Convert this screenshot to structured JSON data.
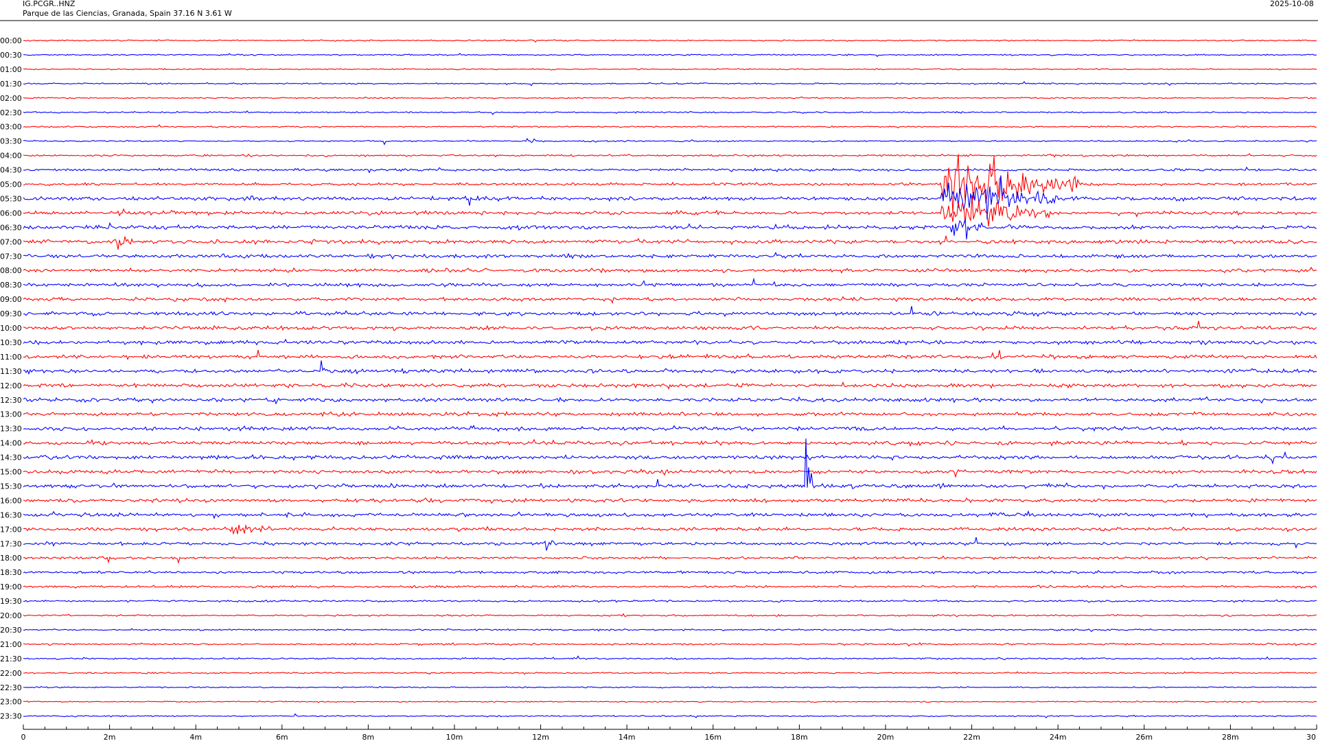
{
  "header": {
    "station": "IG.PCGR..HNZ",
    "location": "Parque de las Ciencias, Granada, Spain  37.16 N 3.61 W",
    "date": "2025-10-08"
  },
  "colors": {
    "even_row": "#ff0000",
    "odd_row": "#0000ff",
    "axis": "#000000",
    "background": "#ffffff"
  },
  "chart_data": {
    "type": "line",
    "title": "",
    "description_type": "helicorder",
    "rows": [
      "00:00",
      "00:30",
      "01:00",
      "01:30",
      "02:00",
      "02:30",
      "03:00",
      "03:30",
      "04:00",
      "04:30",
      "05:00",
      "05:30",
      "06:00",
      "06:30",
      "07:00",
      "07:30",
      "08:00",
      "08:30",
      "09:00",
      "09:30",
      "10:00",
      "10:30",
      "11:00",
      "11:30",
      "12:00",
      "12:30",
      "13:00",
      "13:30",
      "14:00",
      "14:30",
      "15:00",
      "15:30",
      "16:00",
      "16:30",
      "17:00",
      "17:30",
      "18:00",
      "18:30",
      "19:00",
      "19:30",
      "20:00",
      "20:30",
      "21:00",
      "21:30",
      "22:00",
      "22:30",
      "23:00",
      "23:30"
    ],
    "noise_levels": [
      0.9,
      0.9,
      0.8,
      1.0,
      0.9,
      1.0,
      0.9,
      1.0,
      1.3,
      1.6,
      1.8,
      2.6,
      2.4,
      2.6,
      2.6,
      2.4,
      2.3,
      2.3,
      2.3,
      2.4,
      2.4,
      2.6,
      2.5,
      2.6,
      2.6,
      2.5,
      2.5,
      2.5,
      2.5,
      2.6,
      2.5,
      2.6,
      2.4,
      2.5,
      2.3,
      2.0,
      1.7,
      1.7,
      1.5,
      1.3,
      1.2,
      1.1,
      1.2,
      1.1,
      1.0,
      0.9,
      0.8,
      0.9
    ],
    "x_ticks": [
      "0",
      "2m",
      "4m",
      "6m",
      "8m",
      "10m",
      "12m",
      "14m",
      "16m",
      "18m",
      "20m",
      "22m",
      "24m",
      "26m",
      "28m",
      "30"
    ],
    "xlim": [
      0,
      30
    ],
    "x_unit": "minutes",
    "events": [
      {
        "row": 10,
        "start": 21.3,
        "end": 24.5,
        "amp": 55
      },
      {
        "row": 11,
        "start": 21.3,
        "end": 24.0,
        "amp": 45
      },
      {
        "row": 12,
        "start": 21.3,
        "end": 23.8,
        "amp": 40
      },
      {
        "row": 13,
        "start": 21.5,
        "end": 22.3,
        "amp": 25
      },
      {
        "row": 14,
        "start": 2.1,
        "end": 2.6,
        "amp": 22
      },
      {
        "row": 31,
        "start": 18.1,
        "end": 18.3,
        "amp": 100
      },
      {
        "row": 12,
        "start": 2.2,
        "end": 2.5,
        "amp": 18
      },
      {
        "row": 34,
        "start": 4.8,
        "end": 6.0,
        "amp": 12
      },
      {
        "row": 23,
        "start": 6.9,
        "end": 7.0,
        "amp": 40
      },
      {
        "row": 7,
        "start": 11.6,
        "end": 11.9,
        "amp": 9
      },
      {
        "row": 35,
        "start": 12.1,
        "end": 12.3,
        "amp": 30
      }
    ]
  }
}
